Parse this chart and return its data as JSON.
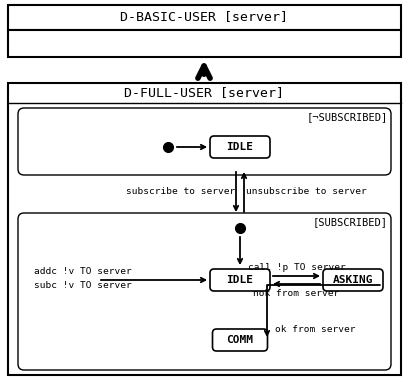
{
  "fig_width": 4.09,
  "fig_height": 3.85,
  "dpi": 100,
  "bg_color": "#ffffff",
  "title_d_basic": "D-BASIC-USER [server]",
  "title_d_full": "D-FULL-USER [server]",
  "label_not_sub": "[¬SUBSCRIBED]",
  "label_sub": "[SUBSCRIBED]",
  "state_idle_top": "IDLE",
  "state_idle_bot": "IDLE",
  "state_asking": "ASKING",
  "state_comm": "COMM",
  "txt_subscribe": "subscribe to server",
  "txt_unsubscribe": "unsubscribe to server",
  "txt_call": "call !p TO server",
  "txt_nok": "nok from server",
  "txt_ok": "ok from server",
  "txt_addc": "addc !v TO server",
  "txt_subc": "subc !v TO server"
}
